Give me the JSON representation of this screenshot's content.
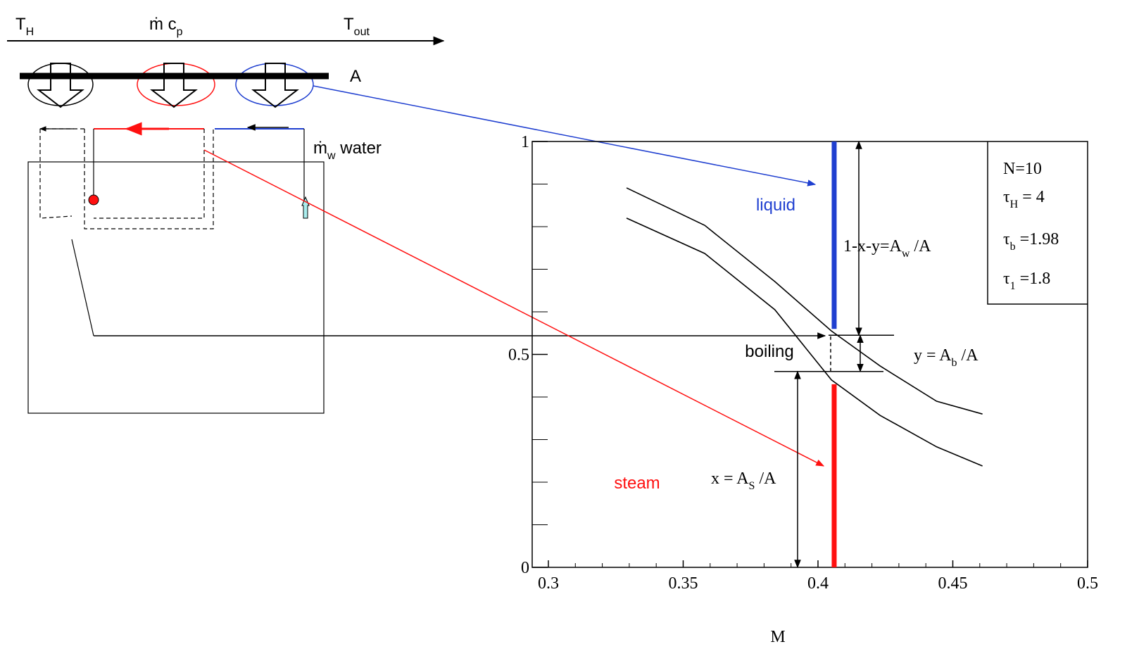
{
  "header": {
    "t_h": [
      "T",
      "H"
    ],
    "m_cp": [
      "ṁ c",
      "p"
    ],
    "t_out": [
      "T",
      "out"
    ],
    "area": "A",
    "water": [
      "ṁ",
      "w",
      "  water"
    ]
  },
  "chart_data": {
    "type": "line",
    "xlabel": "M",
    "xlim": [
      0.294,
      0.5
    ],
    "ylim": [
      0,
      1
    ],
    "xticks": [
      0.3,
      0.35,
      0.4,
      0.45,
      0.5
    ],
    "x_minor_ticks": [
      0.31,
      0.32,
      0.33,
      0.34,
      0.36,
      0.37,
      0.38,
      0.39,
      0.41,
      0.42,
      0.43,
      0.44,
      0.46,
      0.47,
      0.48,
      0.49
    ],
    "yticks": [
      0,
      0.5,
      1
    ],
    "y_minor_ticks": [
      0.1,
      0.2,
      0.3,
      0.4,
      0.6,
      0.7,
      0.8,
      0.9
    ],
    "series": [
      {
        "color": "#000000",
        "x": [
          0.329,
          0.358,
          0.384,
          0.405,
          0.423,
          0.444,
          0.461
        ],
        "values": [
          0.891,
          0.803,
          0.671,
          0.555,
          0.473,
          0.39,
          0.36
        ]
      },
      {
        "color": "#000000",
        "x": [
          0.329,
          0.358,
          0.384,
          0.405,
          0.423,
          0.444,
          0.461
        ],
        "values": [
          0.82,
          0.737,
          0.605,
          0.44,
          0.357,
          0.283,
          0.238
        ]
      }
    ],
    "boiling_x": 0.406,
    "liquid_range": [
      0.56,
      1
    ],
    "liquid_color": "#1f3fd0",
    "steam_range": [
      0,
      0.43
    ],
    "steam_color": "#ff1010",
    "boiling_range": [
      0.46,
      0.545
    ],
    "labels": {
      "liquid": "liquid",
      "steam": "steam",
      "boiling": "boiling"
    },
    "equations": {
      "w": [
        "1-x-y=A",
        "w",
        " /A"
      ],
      "y": [
        "y = A",
        "b",
        " /A"
      ],
      "x": [
        "x = A",
        "S",
        " /A"
      ]
    },
    "params": [
      [
        "N=10"
      ],
      [
        "τ",
        "H",
        " = 4"
      ],
      [
        "τ",
        "b",
        " =1.98"
      ],
      [
        "τ",
        "1",
        " =1.8"
      ]
    ]
  }
}
